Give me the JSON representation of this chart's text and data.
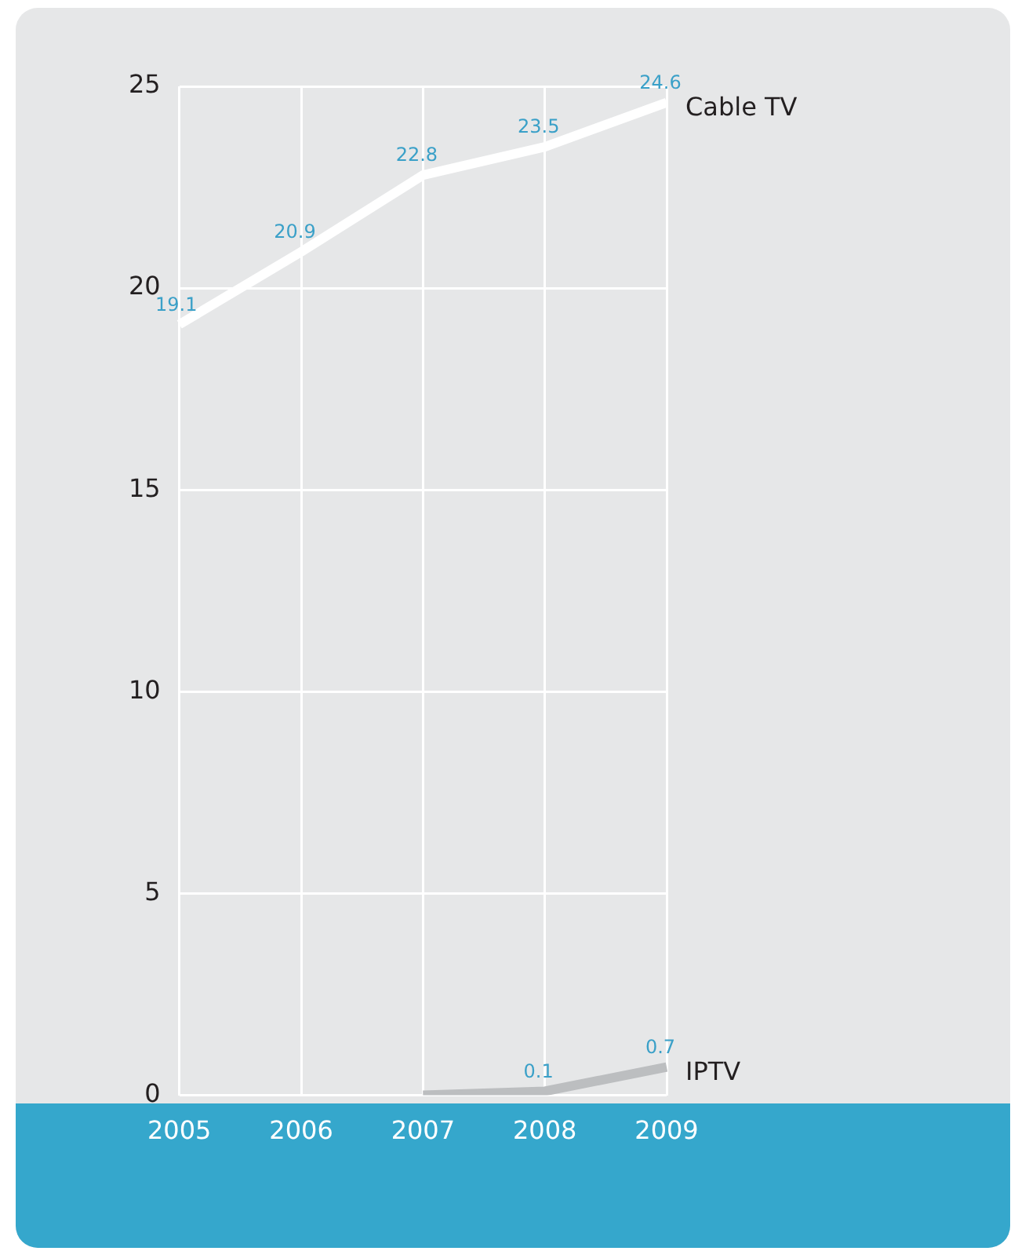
{
  "chart_data": {
    "type": "line",
    "categories": [
      "2005",
      "2006",
      "2007",
      "2008",
      "2009"
    ],
    "series": [
      {
        "name": "Cable TV",
        "color": "#ffffff",
        "values": [
          19.1,
          20.9,
          22.8,
          23.5,
          24.6
        ],
        "value_labels": [
          "19.1",
          "20.9",
          "22.8",
          "23.5",
          "24.6"
        ]
      },
      {
        "name": "IPTV",
        "color": "#bcbec0",
        "values": [
          null,
          null,
          0.0,
          0.1,
          0.7
        ],
        "value_labels": [
          null,
          null,
          null,
          "0.1",
          "0.7"
        ]
      }
    ],
    "ylim": [
      0,
      25
    ],
    "yticks": [
      0,
      5,
      10,
      15,
      20,
      25
    ],
    "grid": true,
    "legend": false,
    "marker": "none",
    "line_style": "solid"
  }
}
